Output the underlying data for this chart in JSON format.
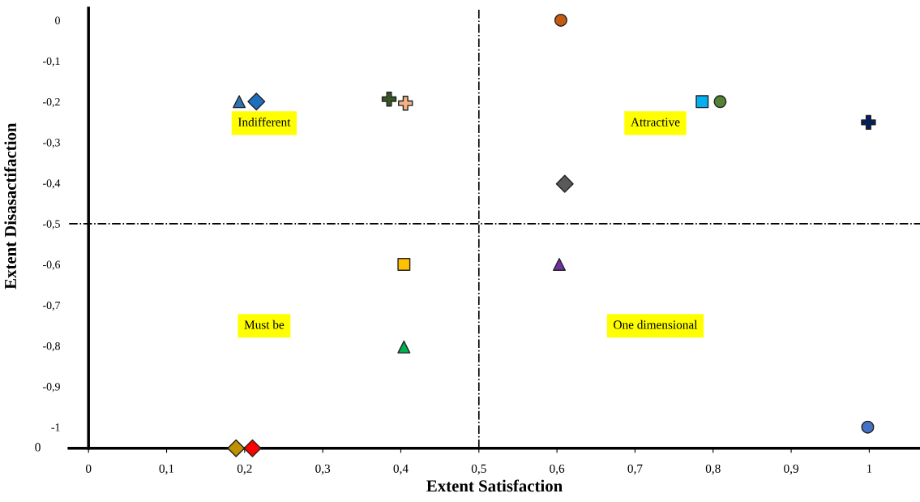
{
  "chart_data": {
    "type": "scatter",
    "xlabel": "Extent Satisfaction",
    "ylabel": "Extent Disasactifaction",
    "xlim": [
      -0.025,
      1.065
    ],
    "ylim": [
      -1.052,
      0.03
    ],
    "xticks": [
      {
        "value": 0,
        "label": "0"
      },
      {
        "value": 0.1,
        "label": "0,1"
      },
      {
        "value": 0.2,
        "label": "0,2"
      },
      {
        "value": 0.3,
        "label": "0,3"
      },
      {
        "value": 0.4,
        "label": "0,4"
      },
      {
        "value": 0.5,
        "label": "0,5"
      },
      {
        "value": 0.6,
        "label": "0,6"
      },
      {
        "value": 0.7,
        "label": "0,7"
      },
      {
        "value": 0.8,
        "label": "0,8"
      },
      {
        "value": 0.9,
        "label": "0,9"
      },
      {
        "value": 1,
        "label": "1"
      }
    ],
    "yticks": [
      {
        "value": 0,
        "label": "0"
      },
      {
        "value": -0.1,
        "label": "-0,1"
      },
      {
        "value": -0.2,
        "label": "-0,2"
      },
      {
        "value": -0.3,
        "label": "-0,3"
      },
      {
        "value": -0.4,
        "label": "-0,4"
      },
      {
        "value": -0.5,
        "label": "-0,5"
      },
      {
        "value": -0.6,
        "label": "-0,6"
      },
      {
        "value": -0.7,
        "label": "-0,7"
      },
      {
        "value": -0.8,
        "label": "-0,8"
      },
      {
        "value": -0.9,
        "label": "-0,9"
      },
      {
        "value": -1,
        "label": "-1"
      }
    ],
    "grid": false,
    "legend": false,
    "ref_lines": [
      {
        "axis": "x",
        "value": 0.5,
        "line_style": "dashdot",
        "color": "#000000"
      },
      {
        "axis": "y",
        "value": -0.5,
        "line_style": "dashdot",
        "color": "#000000"
      }
    ],
    "annotations": [
      "Indifferent",
      "Attractive",
      "Must be",
      "One dimensional",
      "0"
    ],
    "series": [
      {
        "x": [
          0.605
        ],
        "values": [
          0
        ],
        "color": "#c55a11",
        "marker": "circle"
      },
      {
        "x": [
          0.193
        ],
        "values": [
          -0.2
        ],
        "color": "#2e75b6",
        "marker": "triangle"
      },
      {
        "x": [
          0.215
        ],
        "values": [
          -0.2
        ],
        "color": "#1f6fc0",
        "marker": "diamond"
      },
      {
        "x": [
          0.385
        ],
        "values": [
          -0.194
        ],
        "color": "#375623",
        "marker": "cross"
      },
      {
        "x": [
          0.406
        ],
        "values": [
          -0.204
        ],
        "color": "#f4b183",
        "marker": "cross"
      },
      {
        "x": [
          0.786
        ],
        "values": [
          -0.2
        ],
        "color": "#00b0f0",
        "marker": "square"
      },
      {
        "x": [
          0.809
        ],
        "values": [
          -0.2
        ],
        "color": "#548235",
        "marker": "circle"
      },
      {
        "x": [
          0.999
        ],
        "values": [
          -0.251
        ],
        "color": "#002060",
        "marker": "cross"
      },
      {
        "x": [
          0.61
        ],
        "values": [
          -0.402
        ],
        "color": "#595959",
        "marker": "diamond"
      },
      {
        "x": [
          0.404
        ],
        "values": [
          -0.6
        ],
        "color": "#ffc000",
        "marker": "square"
      },
      {
        "x": [
          0.603
        ],
        "values": [
          -0.6
        ],
        "color": "#7030a0",
        "marker": "triangle"
      },
      {
        "x": [
          0.404
        ],
        "values": [
          -0.803
        ],
        "color": "#00b050",
        "marker": "triangle"
      },
      {
        "x": [
          0.998
        ],
        "values": [
          -1.0
        ],
        "color": "#4472c4",
        "marker": "circle"
      },
      {
        "x": [
          0.189
        ],
        "values": [
          -1.052
        ],
        "color": "#bf9000",
        "marker": "diamond"
      },
      {
        "x": [
          0.21
        ],
        "values": [
          -1.052
        ],
        "color": "#ff0000",
        "marker": "diamond"
      }
    ]
  }
}
